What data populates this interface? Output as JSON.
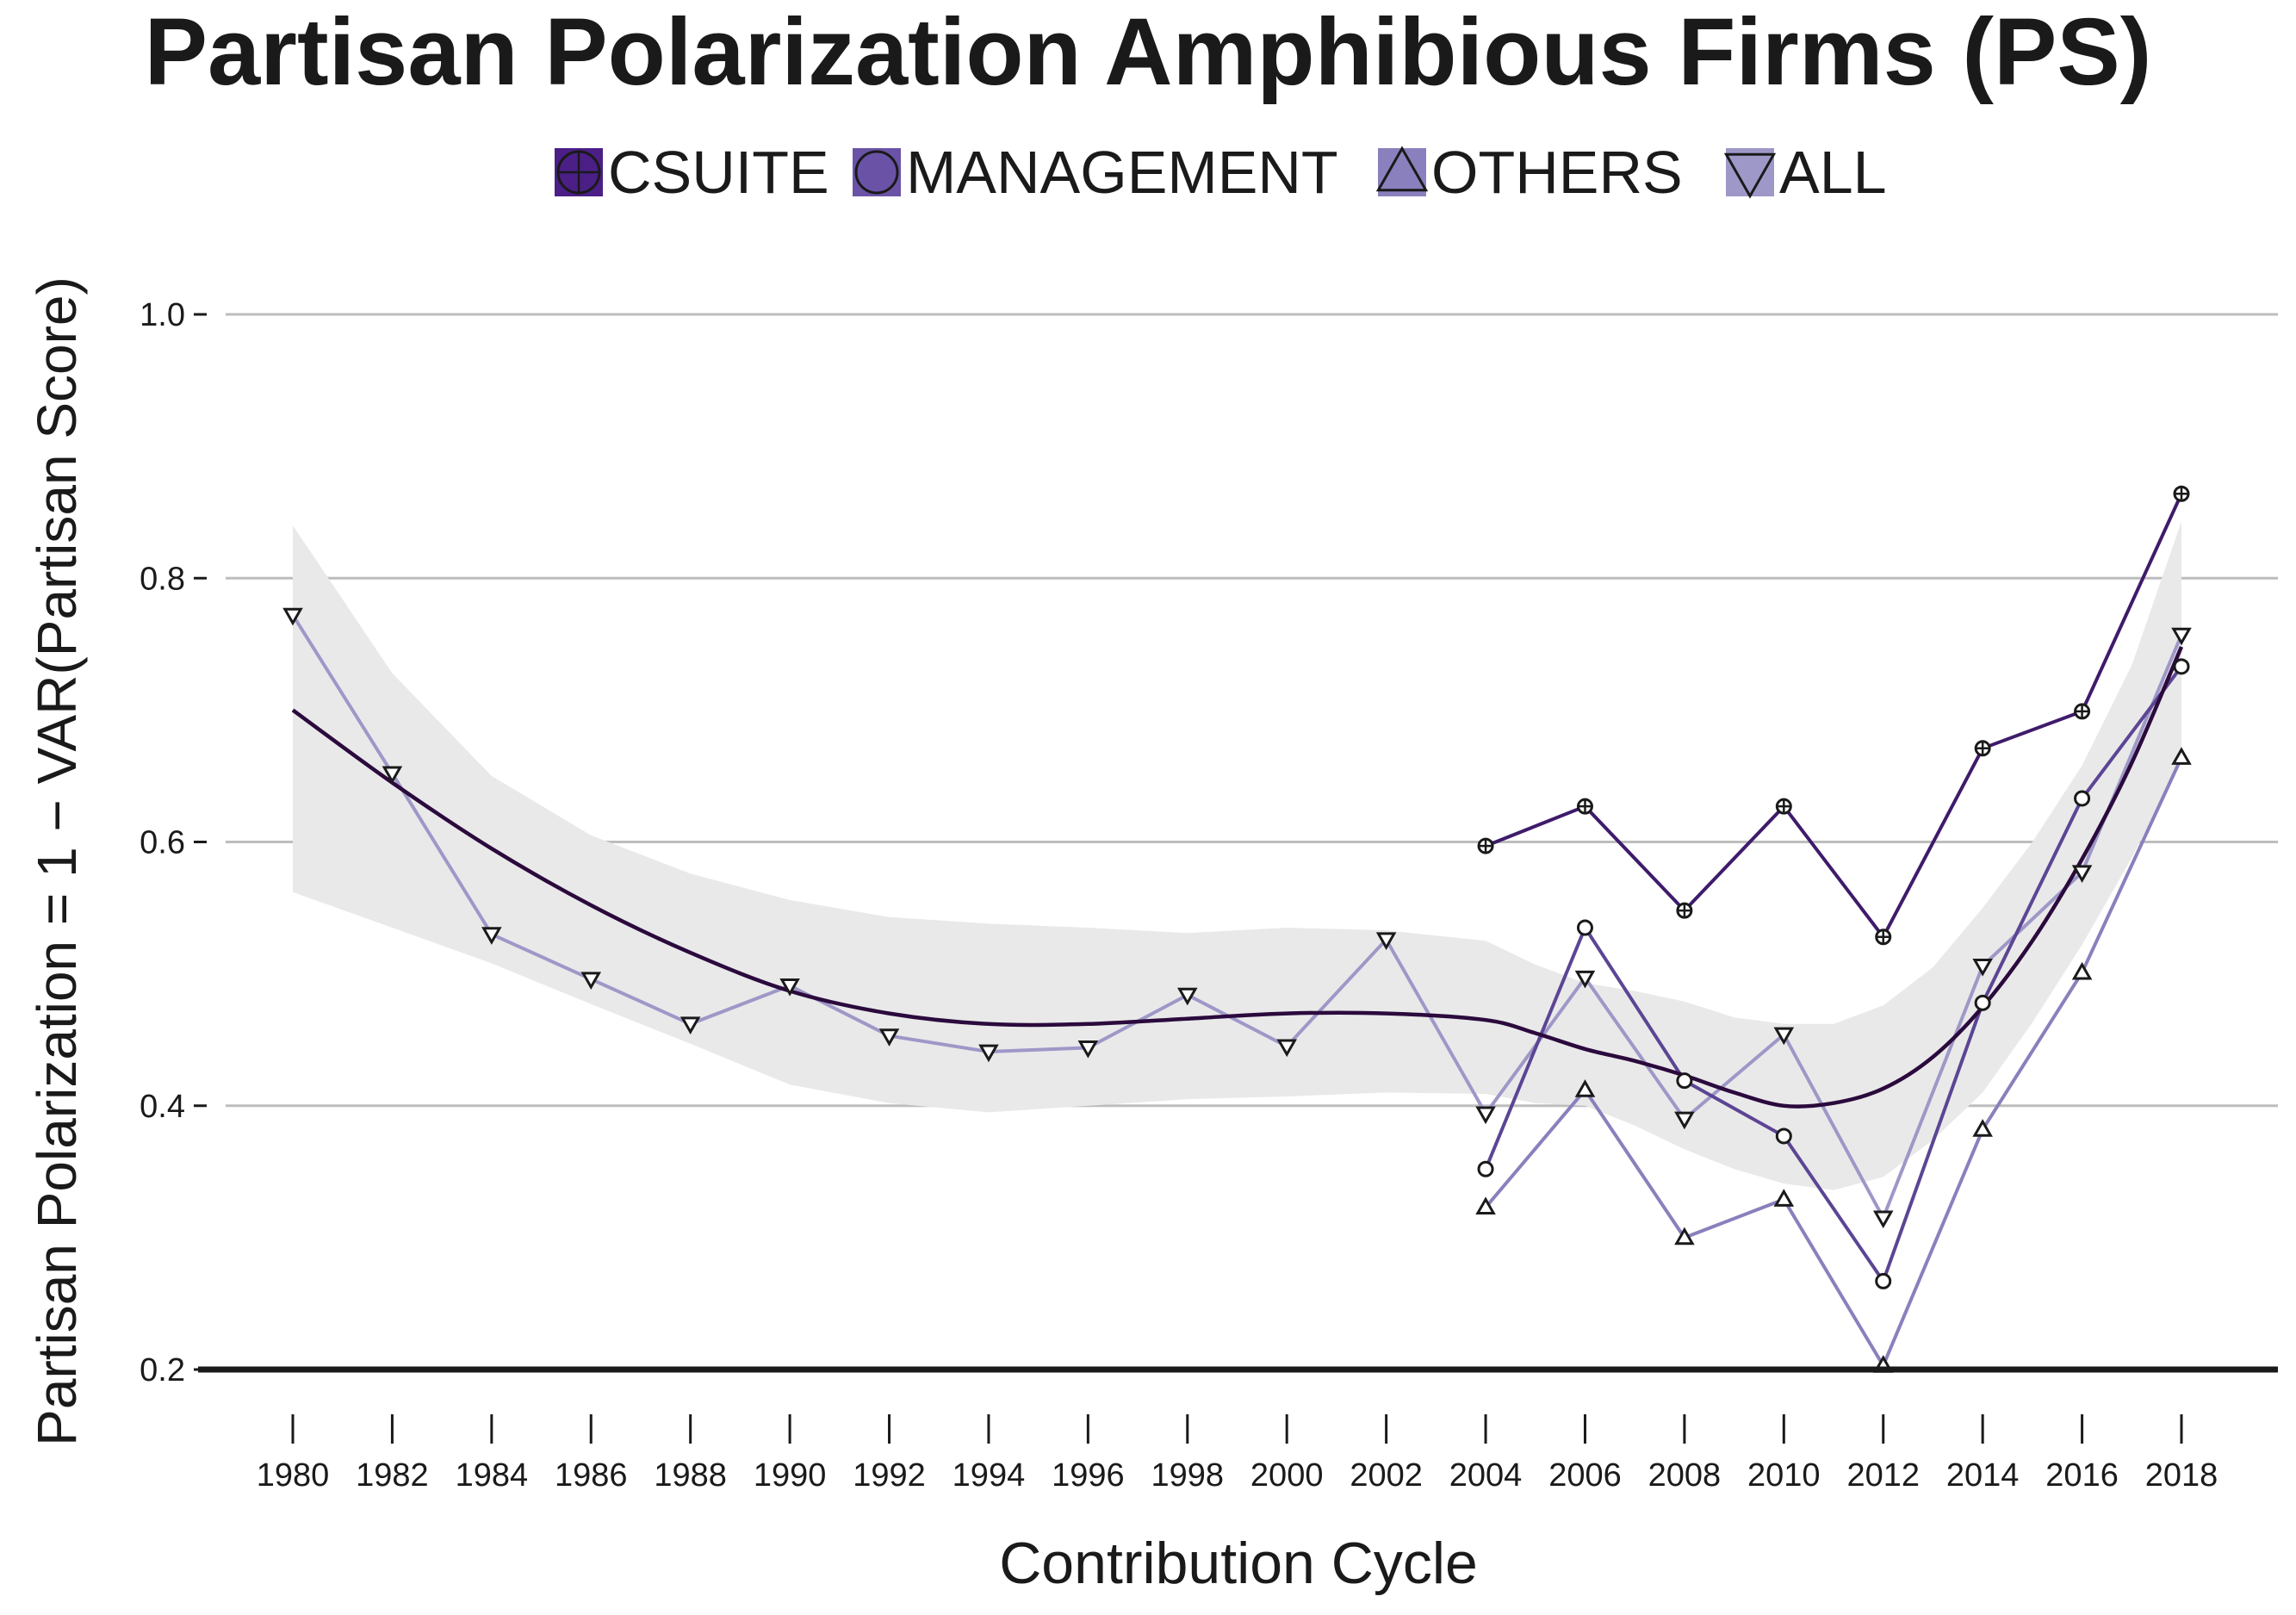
{
  "chart_data": {
    "type": "line",
    "title": "Partisan Polarization Amphibious Firms (PS)",
    "xlabel": "Contribution Cycle",
    "ylabel": "Partisan Polarization = 1 − VAR(Partisan Score)",
    "xlim": [
      1980,
      2018
    ],
    "ylim": [
      0.2,
      1.0
    ],
    "x_ticks": [
      "1980",
      "1982",
      "1984",
      "1986",
      "1988",
      "1990",
      "1992",
      "1994",
      "1996",
      "1998",
      "2000",
      "2002",
      "2004",
      "2006",
      "2008",
      "2010",
      "2012",
      "2014",
      "2016",
      "2018"
    ],
    "y_ticks": [
      "0.2",
      "0.4",
      "0.6",
      "0.8",
      "1.0"
    ],
    "grid": "horizontal",
    "legend_position": "top",
    "series": [
      {
        "name": "CSUITE",
        "marker": "circle-plus",
        "color": "#3f1b6b",
        "x": [
          2004,
          2006,
          2008,
          2010,
          2012,
          2014,
          2016,
          2018
        ],
        "values": [
          0.597,
          0.627,
          0.548,
          0.627,
          0.528,
          0.671,
          0.699,
          0.864
        ]
      },
      {
        "name": "MANAGEMENT",
        "marker": "circle",
        "color": "#5c4594",
        "x": [
          2004,
          2006,
          2008,
          2010,
          2012,
          2014,
          2016,
          2018
        ],
        "values": [
          0.352,
          0.535,
          0.419,
          0.377,
          0.267,
          0.478,
          0.633,
          0.733
        ]
      },
      {
        "name": "OTHERS",
        "marker": "triangle-up",
        "color": "#8a80bd",
        "x": [
          2004,
          2006,
          2008,
          2010,
          2012,
          2014,
          2016,
          2018
        ],
        "values": [
          0.323,
          0.412,
          0.3,
          0.329,
          0.203,
          0.382,
          0.501,
          0.664
        ]
      },
      {
        "name": "ALL",
        "marker": "triangle-down",
        "color": "#9e98c8",
        "x": [
          1980,
          1982,
          1984,
          1986,
          1988,
          1990,
          1992,
          1994,
          1996,
          1998,
          2000,
          2002,
          2004,
          2006,
          2008,
          2010,
          2012,
          2014,
          2016,
          2018
        ],
        "values": [
          0.772,
          0.652,
          0.53,
          0.496,
          0.462,
          0.491,
          0.453,
          0.441,
          0.444,
          0.484,
          0.445,
          0.526,
          0.394,
          0.497,
          0.39,
          0.454,
          0.315,
          0.506,
          0.577,
          0.757
        ]
      }
    ],
    "smooth_trend": {
      "color": "#2b0a3d",
      "x": [
        1980,
        1982,
        1984,
        1986,
        1988,
        1990,
        1992,
        1994,
        1996,
        1998,
        2000,
        2002,
        2004,
        2005,
        2006,
        2007,
        2008,
        2009,
        2010,
        2011,
        2012,
        2013,
        2014,
        2015,
        2016,
        2017,
        2018
      ],
      "values": [
        0.7,
        0.645,
        0.595,
        0.552,
        0.516,
        0.487,
        0.47,
        0.462,
        0.462,
        0.466,
        0.47,
        0.47,
        0.465,
        0.455,
        0.443,
        0.434,
        0.423,
        0.41,
        0.4,
        0.402,
        0.413,
        0.437,
        0.475,
        0.525,
        0.587,
        0.66,
        0.748
      ],
      "ci_upper": [
        0.84,
        0.728,
        0.65,
        0.605,
        0.576,
        0.556,
        0.543,
        0.538,
        0.535,
        0.531,
        0.535,
        0.533,
        0.525,
        0.507,
        0.493,
        0.487,
        0.479,
        0.467,
        0.462,
        0.462,
        0.476,
        0.505,
        0.55,
        0.6,
        0.658,
        0.734,
        0.843
      ],
      "ci_lower": [
        0.562,
        0.535,
        0.508,
        0.477,
        0.447,
        0.416,
        0.402,
        0.395,
        0.4,
        0.405,
        0.407,
        0.41,
        0.409,
        0.402,
        0.4,
        0.385,
        0.367,
        0.352,
        0.341,
        0.336,
        0.346,
        0.374,
        0.41,
        0.463,
        0.522,
        0.588,
        0.662
      ]
    }
  }
}
